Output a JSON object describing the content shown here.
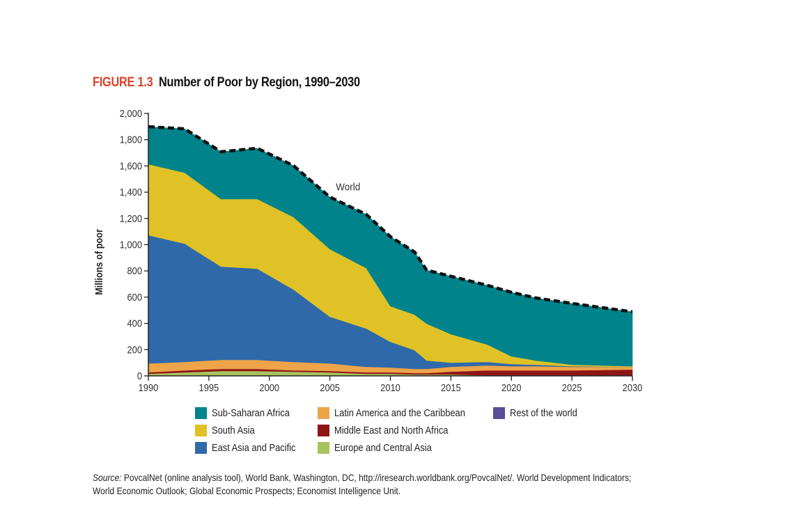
{
  "figure": {
    "number": "FIGURE 1.3",
    "title": "Number of Poor by Region, 1990–2030"
  },
  "chart_data": {
    "type": "area",
    "stacked": true,
    "title": "Number of Poor by Region, 1990–2030",
    "xlabel": "",
    "ylabel": "Millions of poor",
    "xlim": [
      1990,
      2030
    ],
    "ylim": [
      0,
      2000
    ],
    "x_ticks": [
      "1990",
      "1995",
      "2000",
      "2005",
      "2010",
      "2015",
      "2020",
      "2025",
      "2030"
    ],
    "x_tick_values": [
      1990,
      1995,
      2000,
      2005,
      2010,
      2015,
      2020,
      2025,
      2030
    ],
    "y_ticks": [
      "0",
      "200",
      "400",
      "600",
      "800",
      "1,000",
      "1,200",
      "1,400",
      "1,600",
      "1,800",
      "2,000"
    ],
    "y_tick_values": [
      0,
      200,
      400,
      600,
      800,
      1000,
      1200,
      1400,
      1600,
      1800,
      2000
    ],
    "grid": false,
    "legend_position": "bottom",
    "x": [
      1990,
      1993,
      1996,
      1999,
      2002,
      2005,
      2008,
      2010,
      2012,
      2013,
      2015,
      2018,
      2020,
      2022,
      2025,
      2030
    ],
    "series": [
      {
        "name": "Rest of the world",
        "color": "#5a4e9a",
        "values": [
          1,
          1,
          1,
          1,
          1,
          1,
          1,
          1,
          1,
          2,
          2,
          3,
          3,
          3,
          3,
          3
        ]
      },
      {
        "name": "Europe and Central Asia",
        "color": "#a8c25e",
        "values": [
          15,
          26,
          36,
          36,
          31,
          26,
          15,
          15,
          10,
          9,
          9,
          2,
          2,
          2,
          2,
          2
        ]
      },
      {
        "name": "Middle East and North Africa",
        "color": "#8e1616",
        "values": [
          11,
          15,
          16,
          16,
          10,
          10,
          11,
          11,
          10,
          10,
          21,
          37,
          37,
          37,
          37,
          43
        ]
      },
      {
        "name": "Latin America and the Caribbean",
        "color": "#eea448",
        "values": [
          68,
          64,
          69,
          69,
          64,
          58,
          42,
          37,
          32,
          32,
          37,
          38,
          32,
          32,
          27,
          21
        ]
      },
      {
        "name": "East Asia and Pacific",
        "color": "#2f69aa",
        "values": [
          977,
          902,
          711,
          695,
          552,
          356,
          292,
          196,
          143,
          64,
          32,
          26,
          16,
          11,
          5,
          0
        ]
      },
      {
        "name": "South Asia",
        "color": "#e0c226",
        "values": [
          541,
          541,
          515,
          531,
          552,
          515,
          461,
          271,
          271,
          281,
          217,
          133,
          59,
          32,
          11,
          5
        ]
      },
      {
        "name": "Sub-Saharan Africa",
        "color": "#00838a",
        "values": [
          286,
          334,
          360,
          387,
          392,
          397,
          409,
          530,
          477,
          408,
          441,
          451,
          488,
          477,
          467,
          414
        ]
      }
    ],
    "world_total": {
      "name": "World",
      "style": "dashed",
      "values": [
        1899,
        1883,
        1708,
        1735,
        1602,
        1363,
        1231,
        1061,
        944,
        806,
        759,
        690,
        637,
        594,
        552,
        488
      ]
    },
    "annotations": [
      {
        "text": "World",
        "x": 2005.5,
        "y": 1415
      }
    ]
  },
  "legend": {
    "items": [
      {
        "label": "Sub-Saharan Africa",
        "color": "#00838a"
      },
      {
        "label": "South Asia",
        "color": "#e0c226"
      },
      {
        "label": "East Asia and Pacific",
        "color": "#2f69aa"
      },
      {
        "label": "Latin America and the Caribbean",
        "color": "#eea448"
      },
      {
        "label": "Middle East and North Africa",
        "color": "#8e1616"
      },
      {
        "label": "Europe and Central Asia",
        "color": "#a8c25e"
      },
      {
        "label": "Rest of the world",
        "color": "#5a4e9a"
      }
    ]
  },
  "source": {
    "label": "Source:",
    "text": " PovcalNet (online analysis tool), World Bank, Washington, DC, http://iresearch.worldbank.org/PovcalNet/. World Development Indicators; World Economic Outlook; Global Economic Prospects; Economist Intelligence Unit."
  }
}
